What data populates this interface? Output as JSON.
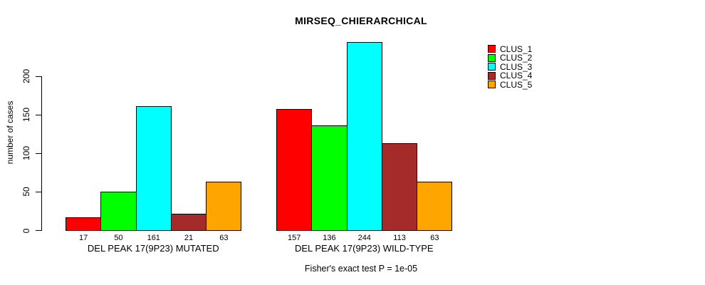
{
  "chart_data": {
    "type": "bar",
    "title": "MIRSEQ_CHIERARCHICAL",
    "ylabel": "number of cases",
    "yticks": [
      0,
      50,
      100,
      150,
      200
    ],
    "ylim": [
      0,
      254
    ],
    "grid": false,
    "legend_position": "right",
    "bar_border_color": "#000000",
    "categories": [
      "DEL PEAK 17(9P23) MUTATED",
      "DEL PEAK 17(9P23) WILD-TYPE"
    ],
    "series": [
      {
        "name": "CLUS_1",
        "color": "#ff0000",
        "values": [
          17,
          157
        ]
      },
      {
        "name": "CLUS_2",
        "color": "#00ff00",
        "values": [
          50,
          136
        ]
      },
      {
        "name": "CLUS_3",
        "color": "#00ffff",
        "values": [
          161,
          244
        ]
      },
      {
        "name": "CLUS_4",
        "color": "#a52a2a",
        "values": [
          21,
          113
        ]
      },
      {
        "name": "CLUS_5",
        "color": "#ffa500",
        "values": [
          63,
          63
        ]
      }
    ],
    "bar_value_labels": [
      [
        "17",
        "50",
        "161",
        "21",
        "63"
      ],
      [
        "157",
        "136",
        "244",
        "113",
        "63"
      ]
    ],
    "caption": "Fisher's exact test P = 1e-05"
  }
}
